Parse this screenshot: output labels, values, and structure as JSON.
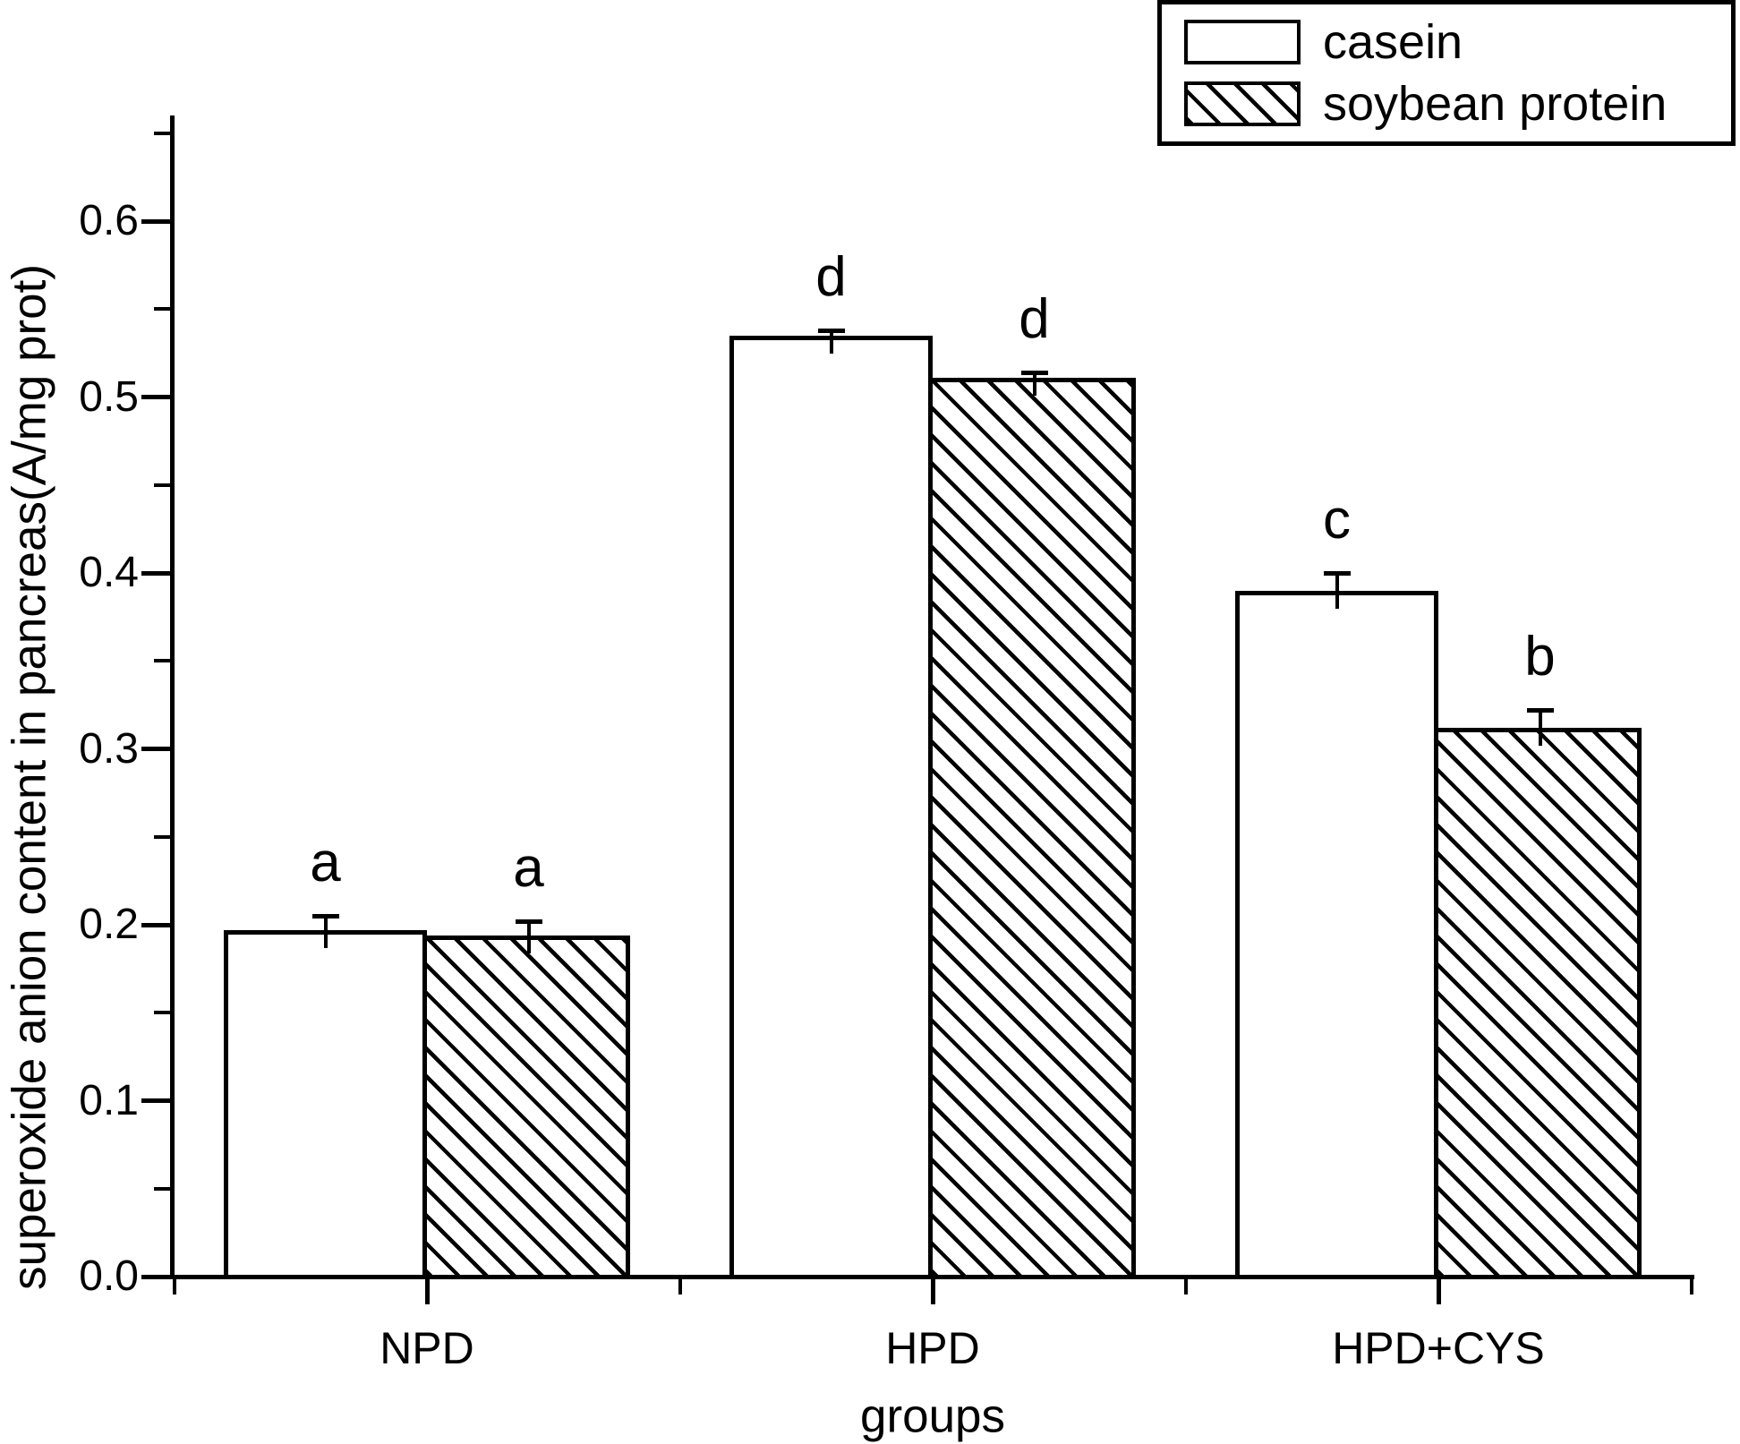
{
  "figure": {
    "background_color": "#ffffff",
    "ink_color": "#000000"
  },
  "legend": {
    "position": "top-right",
    "items": [
      {
        "label": "casein",
        "pattern": "solid-white"
      },
      {
        "label": "soybean protein",
        "pattern": "diagonal-hatch"
      }
    ]
  },
  "chart_data": {
    "type": "bar",
    "title": "",
    "xlabel": "groups",
    "ylabel": "superoxide anion content in pancreas(A/mg prot)",
    "categories": [
      "NPD",
      "HPD",
      "HPD+CYS"
    ],
    "series": [
      {
        "name": "casein",
        "pattern": "solid-white",
        "values": [
          0.197,
          0.535,
          0.39
        ],
        "errors": [
          0.009,
          0.004,
          0.011
        ],
        "sig_letters": [
          "a",
          "d",
          "c"
        ]
      },
      {
        "name": "soybean protein",
        "pattern": "diagonal-hatch",
        "values": [
          0.194,
          0.511,
          0.312
        ],
        "errors": [
          0.009,
          0.004,
          0.011
        ],
        "sig_letters": [
          "a",
          "d",
          "b"
        ]
      }
    ],
    "ylim": [
      0.0,
      0.66
    ],
    "yticks_major": [
      0.0,
      0.1,
      0.2,
      0.3,
      0.4,
      0.5,
      0.6
    ],
    "ytick_labels": [
      "0.0",
      "0.1",
      "0.2",
      "0.3",
      "0.4",
      "0.5",
      "0.6"
    ],
    "ytick_minor_step": 0.05,
    "grid": false,
    "error_bars": true,
    "legend_position": "top-right"
  }
}
